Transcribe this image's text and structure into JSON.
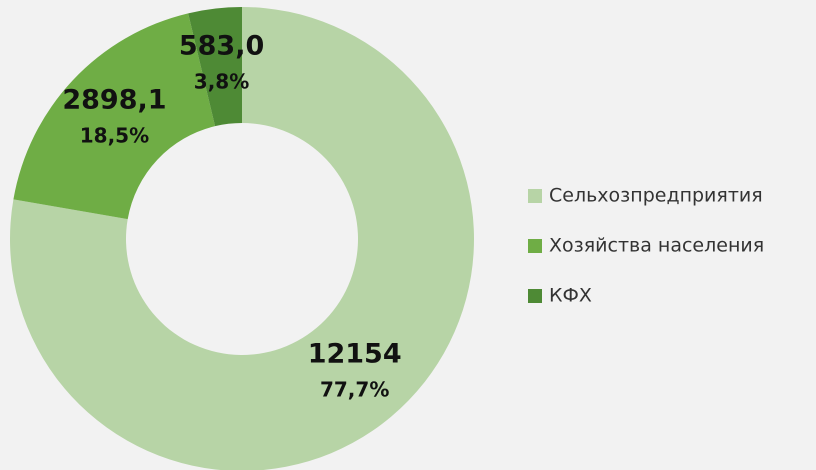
{
  "chart_data": {
    "type": "donut",
    "categories": [
      "Сельхозпредприятия",
      "Хозяйства населения",
      "КФХ"
    ],
    "values": [
      12154,
      2898.1,
      583.0
    ],
    "value_labels": [
      "12154",
      "2898,1",
      "583,0"
    ],
    "percents": [
      77.7,
      18.5,
      3.8
    ],
    "percent_labels": [
      "77,7%",
      "18,5%",
      "3,8%"
    ],
    "colors": [
      "#b7d4a6",
      "#6fad45",
      "#4e8a35"
    ],
    "legend": "right"
  }
}
